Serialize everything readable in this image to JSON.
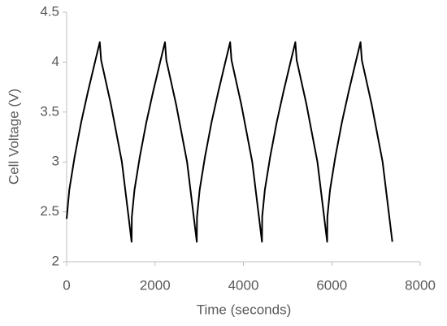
{
  "chart_data": {
    "type": "line",
    "x_label": "Time (seconds)",
    "y_label": "Cell Voltage (V)",
    "x": [
      0,
      60,
      180,
      330,
      480,
      630,
      750,
      780,
      1000,
      1250,
      1470,
      1475,
      1535,
      1655,
      1805,
      1955,
      2105,
      2225,
      2255,
      2475,
      2725,
      2945,
      2950,
      3010,
      3130,
      3280,
      3430,
      3580,
      3700,
      3730,
      3950,
      4200,
      4420,
      4425,
      4485,
      4605,
      4755,
      4905,
      5055,
      5175,
      5205,
      5425,
      5675,
      5895,
      5900,
      5960,
      6080,
      6230,
      6380,
      6530,
      6650,
      6680,
      6900,
      7150,
      7370
    ],
    "values": [
      2.43,
      2.72,
      3.05,
      3.4,
      3.7,
      3.98,
      4.2,
      4.02,
      3.58,
      3.0,
      2.2,
      2.45,
      2.72,
      3.05,
      3.4,
      3.7,
      3.98,
      4.2,
      4.02,
      3.58,
      3.0,
      2.2,
      2.45,
      2.72,
      3.05,
      3.4,
      3.7,
      3.98,
      4.2,
      4.02,
      3.58,
      3.0,
      2.2,
      2.45,
      2.72,
      3.05,
      3.4,
      3.7,
      3.98,
      4.2,
      4.02,
      3.58,
      3.0,
      2.2,
      2.45,
      2.72,
      3.05,
      3.4,
      3.7,
      3.98,
      4.2,
      4.02,
      3.58,
      3.0,
      2.2
    ],
    "color": "#000000",
    "xlim": [
      0,
      8000
    ],
    "xticks": [
      0,
      2000,
      4000,
      6000,
      8000
    ],
    "ylim": [
      2,
      4.5
    ],
    "yticks": [
      2,
      2.5,
      3,
      3.5,
      4,
      4.5
    ],
    "grid": false
  }
}
